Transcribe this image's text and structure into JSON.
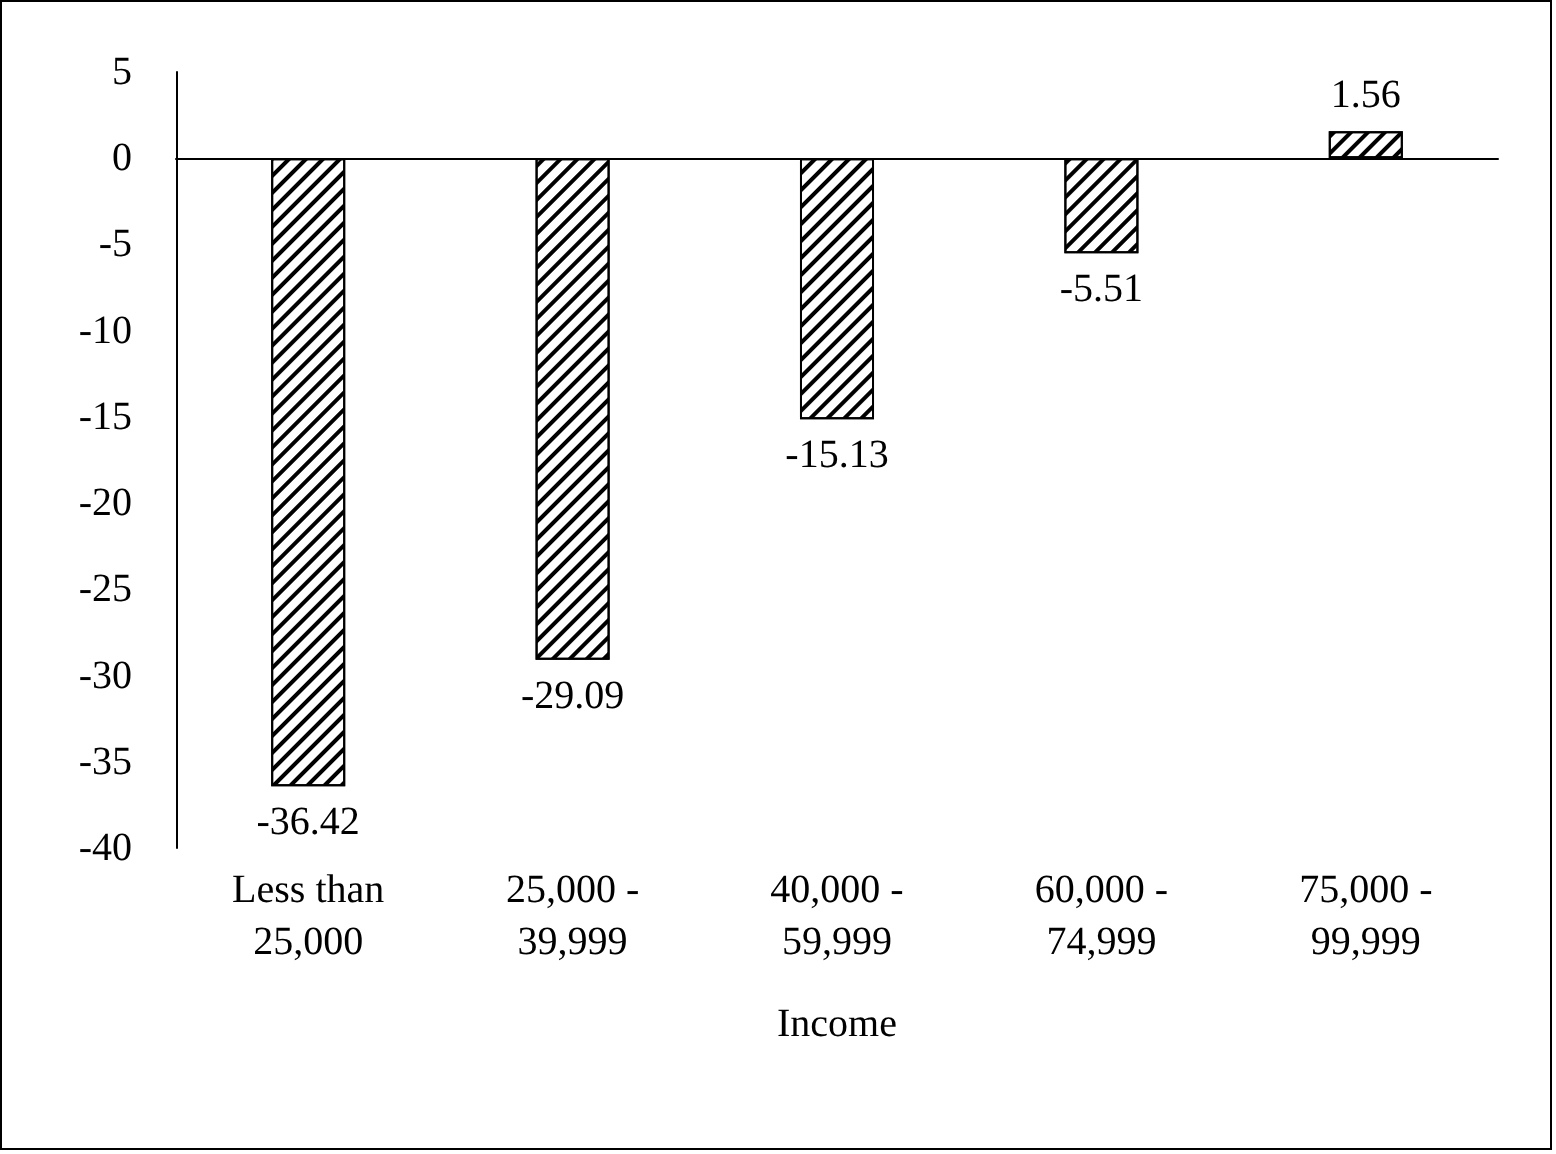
{
  "chart_data": {
    "type": "bar",
    "xlabel": "Income",
    "categories": [
      "Less than\n25,000",
      "25,000 -\n39,999",
      "40,000 -\n59,999",
      "60,000 -\n74,999",
      "75,000 -\n99,999"
    ],
    "values": [
      -36.42,
      -29.09,
      -15.13,
      -5.51,
      1.56
    ],
    "color": "#000000",
    "data_labels": true,
    "ylim": [
      -40,
      5
    ],
    "yticks": [
      -40,
      -35,
      -30,
      -25,
      -20,
      -15,
      -10,
      -5,
      0,
      5
    ]
  }
}
